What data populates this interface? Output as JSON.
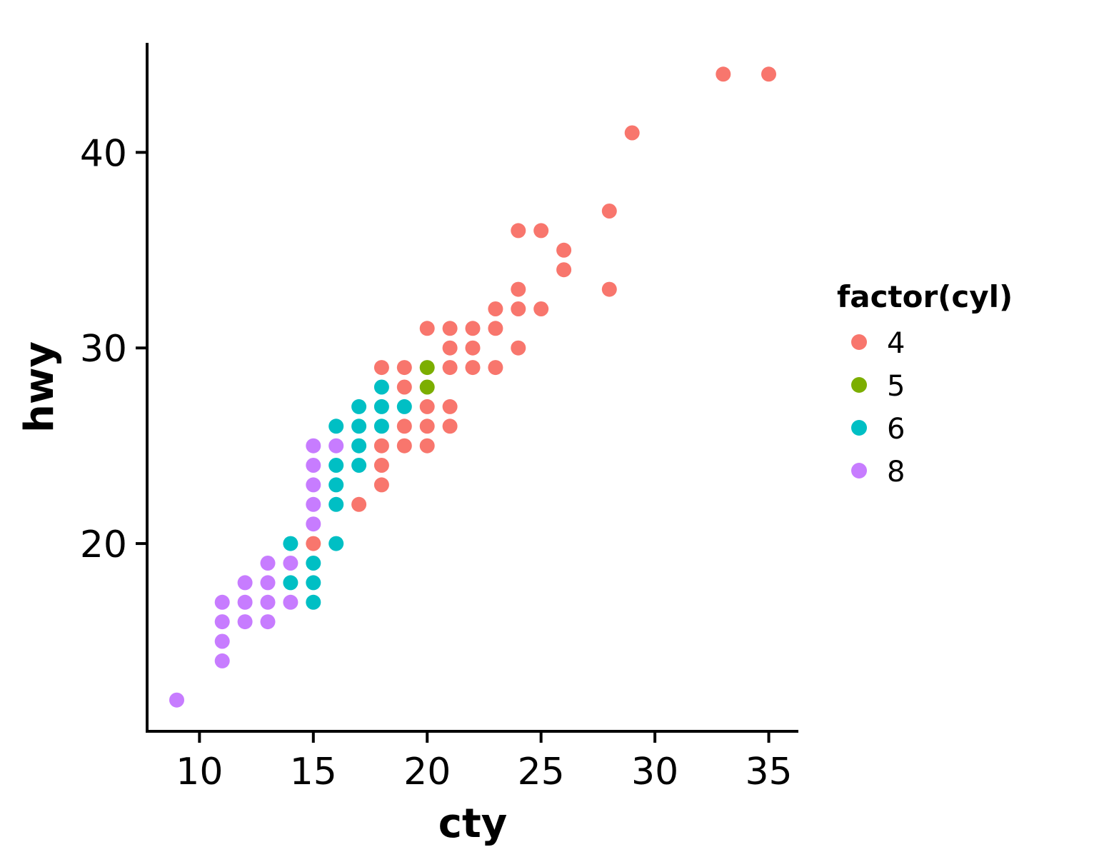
{
  "chart_data": {
    "type": "scatter",
    "title": "",
    "xlabel": "cty",
    "ylabel": "hwy",
    "xlim": [
      7.7,
      36.3
    ],
    "ylim": [
      10.4,
      45.6
    ],
    "xticks": [
      10,
      15,
      20,
      25,
      30,
      35
    ],
    "yticks": [
      20,
      30,
      40
    ],
    "grid": false,
    "legend": {
      "title": "factor(cyl)",
      "position": "right"
    },
    "series": [
      {
        "name": "4",
        "color": "#F8766D",
        "points": [
          [
            15,
            20
          ],
          [
            18,
            23
          ],
          [
            18,
            24
          ],
          [
            17,
            22
          ],
          [
            18,
            25
          ],
          [
            19,
            25
          ],
          [
            20,
            25
          ],
          [
            18,
            29
          ],
          [
            19,
            29
          ],
          [
            19,
            28
          ],
          [
            19,
            26
          ],
          [
            20,
            26
          ],
          [
            20,
            27
          ],
          [
            21,
            26
          ],
          [
            21,
            27
          ],
          [
            21,
            29
          ],
          [
            21,
            30
          ],
          [
            20,
            31
          ],
          [
            21,
            31
          ],
          [
            22,
            29
          ],
          [
            22,
            30
          ],
          [
            22,
            31
          ],
          [
            23,
            29
          ],
          [
            23,
            31
          ],
          [
            23,
            32
          ],
          [
            24,
            30
          ],
          [
            24,
            32
          ],
          [
            24,
            33
          ],
          [
            25,
            32
          ],
          [
            24,
            36
          ],
          [
            25,
            36
          ],
          [
            26,
            34
          ],
          [
            26,
            35
          ],
          [
            28,
            33
          ],
          [
            28,
            37
          ],
          [
            29,
            41
          ],
          [
            33,
            44
          ],
          [
            35,
            44
          ]
        ]
      },
      {
        "name": "5",
        "color": "#7CAE00",
        "points": [
          [
            20,
            28
          ],
          [
            20,
            29
          ]
        ]
      },
      {
        "name": "6",
        "color": "#00BFC4",
        "points": [
          [
            14,
            18
          ],
          [
            14,
            20
          ],
          [
            15,
            17
          ],
          [
            15,
            18
          ],
          [
            15,
            19
          ],
          [
            16,
            20
          ],
          [
            16,
            22
          ],
          [
            16,
            23
          ],
          [
            16,
            24
          ],
          [
            16,
            26
          ],
          [
            17,
            24
          ],
          [
            17,
            25
          ],
          [
            17,
            26
          ],
          [
            17,
            27
          ],
          [
            18,
            26
          ],
          [
            18,
            27
          ],
          [
            18,
            28
          ],
          [
            19,
            27
          ]
        ]
      },
      {
        "name": "8",
        "color": "#C77CFF",
        "points": [
          [
            9,
            12
          ],
          [
            11,
            14
          ],
          [
            11,
            15
          ],
          [
            11,
            16
          ],
          [
            11,
            17
          ],
          [
            12,
            16
          ],
          [
            12,
            17
          ],
          [
            12,
            18
          ],
          [
            13,
            16
          ],
          [
            13,
            17
          ],
          [
            13,
            18
          ],
          [
            13,
            19
          ],
          [
            14,
            17
          ],
          [
            14,
            19
          ],
          [
            15,
            21
          ],
          [
            15,
            22
          ],
          [
            15,
            23
          ],
          [
            15,
            24
          ],
          [
            15,
            25
          ],
          [
            16,
            25
          ]
        ]
      }
    ]
  }
}
